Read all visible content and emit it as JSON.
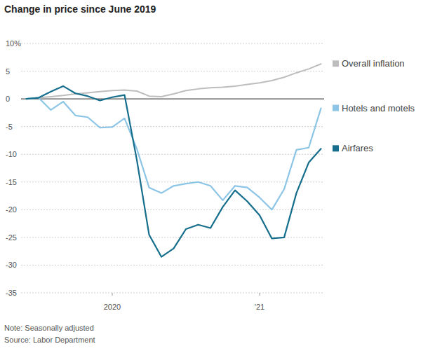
{
  "chart_data": {
    "type": "line",
    "title": "Change in price since June 2019",
    "note": "Note: Seasonally adjusted",
    "source": "Source: Labor Department",
    "categories": [
      null,
      null,
      null,
      null,
      null,
      null,
      null,
      "2020",
      null,
      null,
      null,
      null,
      null,
      null,
      null,
      null,
      null,
      null,
      null,
      "'21",
      null,
      null,
      null,
      null,
      null
    ],
    "series": [
      {
        "name": "Overall inflation",
        "color": "#bdbdbd",
        "values": [
          0,
          0.2,
          0.4,
          0.6,
          0.9,
          1.1,
          1.3,
          1.5,
          1.6,
          1.4,
          0.5,
          0.4,
          0.9,
          1.5,
          1.8,
          2.0,
          2.1,
          2.3,
          2.6,
          2.9,
          3.3,
          3.9,
          4.7,
          5.4,
          6.3
        ]
      },
      {
        "name": "Hotels and motels",
        "color": "#8cc5e6",
        "values": [
          0,
          0.2,
          -2,
          -0.5,
          -3,
          -3.3,
          -5.2,
          -5.1,
          -3.5,
          -9,
          -16,
          -17,
          -15.7,
          -15.3,
          -15,
          -15.7,
          -18.3,
          -15.7,
          -16,
          -17.8,
          -20,
          -16.3,
          -9.2,
          -8.8,
          -1.7
        ]
      },
      {
        "name": "Airfares",
        "color": "#156e8c",
        "values": [
          0,
          0.2,
          1.3,
          2.3,
          1.0,
          0.5,
          -0.3,
          0.3,
          0.7,
          -11,
          -24.5,
          -28.5,
          -27,
          -23.5,
          -22.7,
          -23.3,
          -19.5,
          -16.5,
          -18.5,
          -21,
          -25.2,
          -25,
          -17,
          -11.5,
          -9
        ]
      }
    ],
    "ylim": [
      -35,
      10
    ],
    "yticks": [
      {
        "value": 10,
        "label": "10%"
      },
      5,
      0,
      -5,
      -10,
      -15,
      -20,
      -25,
      -30,
      -35
    ],
    "grid": true,
    "legend": "right"
  }
}
